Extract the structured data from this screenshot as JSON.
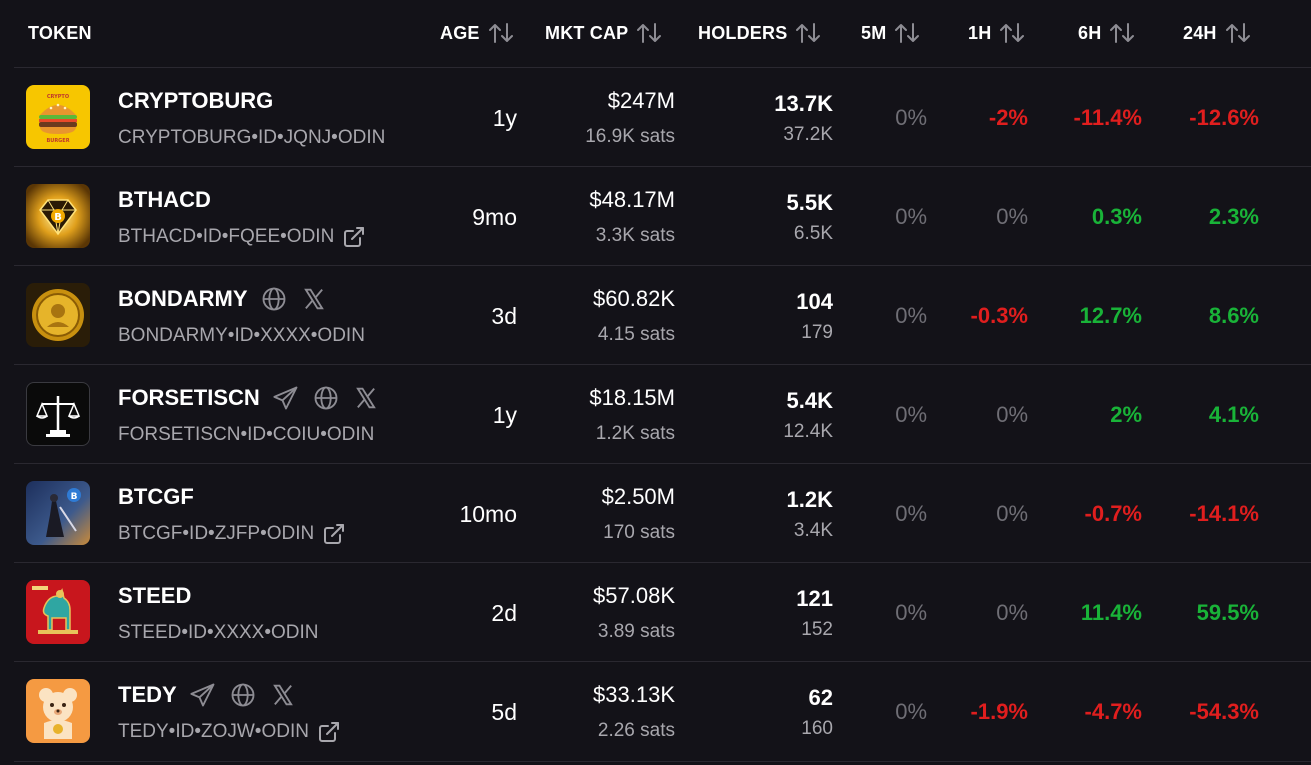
{
  "header": {
    "token": "TOKEN",
    "age": "AGE",
    "mkt_cap": "MKT CAP",
    "holders": "HOLDERS",
    "m5": "5M",
    "h1": "1H",
    "h6": "6H",
    "h24": "24H"
  },
  "colors": {
    "background": "#131218",
    "positive": "#19b338",
    "negative": "#e01e1e",
    "muted": "#a8a7ad",
    "zero": "#6f6e75"
  },
  "rows": [
    {
      "name": "CRYPTOBURG",
      "id": "CRYPTOBURG•ID•JQNJ•ODIN",
      "age": "1y",
      "mkt_cap": "$247M",
      "sats": "16.9K sats",
      "holders": "13.7K",
      "holders_secondary": "37.2K",
      "m5": "0%",
      "h1": "-2%",
      "h6": "-11.4%",
      "h24": "-12.6%",
      "icons": [],
      "logo_icon": "burger-logo"
    },
    {
      "name": "BTHACD",
      "id": "BTHACD•ID•FQEE•ODIN",
      "age": "9mo",
      "mkt_cap": "$48.17M",
      "sats": "3.3K sats",
      "holders": "5.5K",
      "holders_secondary": "6.5K",
      "m5": "0%",
      "h1": "0%",
      "h6": "0.3%",
      "h24": "2.3%",
      "icons": [],
      "logo_icon": "bitcoin-diamond-logo"
    },
    {
      "name": "BONDARMY",
      "id": "BONDARMY•ID•XXXX•ODIN",
      "age": "3d",
      "mkt_cap": "$60.82K",
      "sats": "4.15 sats",
      "holders": "104",
      "holders_secondary": "179",
      "m5": "0%",
      "h1": "-0.3%",
      "h6": "12.7%",
      "h24": "8.6%",
      "icons": [
        "globe-icon",
        "x-icon"
      ],
      "logo_icon": "gold-coin-logo"
    },
    {
      "name": "FORSETISCN",
      "id": "FORSETISCN•ID•COIU•ODIN",
      "age": "1y",
      "mkt_cap": "$18.15M",
      "sats": "1.2K sats",
      "holders": "5.4K",
      "holders_secondary": "12.4K",
      "m5": "0%",
      "h1": "0%",
      "h6": "2%",
      "h24": "4.1%",
      "icons": [
        "telegram-icon",
        "globe-icon",
        "x-icon"
      ],
      "logo_icon": "scales-logo"
    },
    {
      "name": "BTCGF",
      "id": "BTCGF•ID•ZJFP•ODIN",
      "age": "10mo",
      "mkt_cap": "$2.50M",
      "sats": "170 sats",
      "holders": "1.2K",
      "holders_secondary": "3.4K",
      "m5": "0%",
      "h1": "0%",
      "h6": "-0.7%",
      "h24": "-14.1%",
      "icons": [],
      "logo_icon": "warrior-logo"
    },
    {
      "name": "STEED",
      "id": "STEED•ID•XXXX•ODIN",
      "age": "2d",
      "mkt_cap": "$57.08K",
      "sats": "3.89 sats",
      "holders": "121",
      "holders_secondary": "152",
      "m5": "0%",
      "h1": "0%",
      "h6": "11.4%",
      "h24": "59.5%",
      "icons": [],
      "logo_icon": "horse-logo"
    },
    {
      "name": "TEDY",
      "id": "TEDY•ID•ZOJW•ODIN",
      "age": "5d",
      "mkt_cap": "$33.13K",
      "sats": "2.26 sats",
      "holders": "62",
      "holders_secondary": "160",
      "m5": "0%",
      "h1": "-1.9%",
      "h6": "-4.7%",
      "h24": "-54.3%",
      "icons": [
        "telegram-icon",
        "globe-icon",
        "x-icon"
      ],
      "logo_icon": "teddy-bear-logo"
    }
  ]
}
